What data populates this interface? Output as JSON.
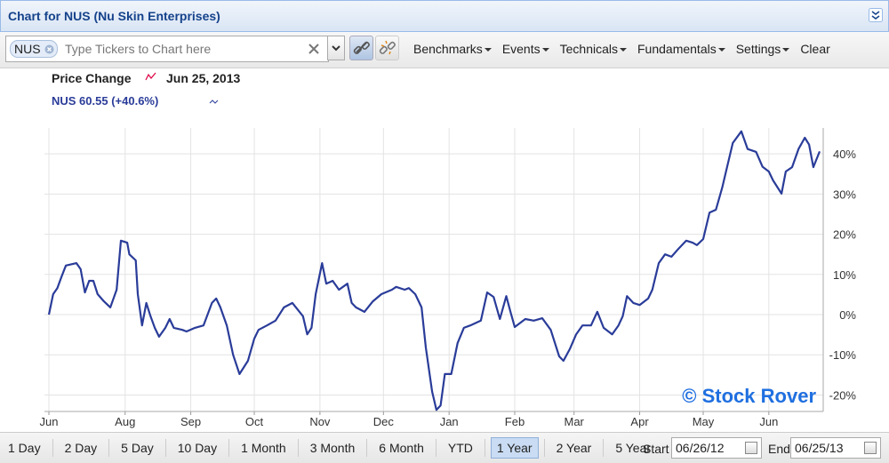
{
  "window": {
    "title": "Chart for NUS (Nu Skin Enterprises)"
  },
  "toolbar": {
    "ticker": "NUS",
    "placeholder": "Type Tickers to Chart here",
    "menus": [
      "Benchmarks",
      "Events",
      "Technicals",
      "Fundamentals",
      "Settings",
      "Clear"
    ]
  },
  "chart_data": {
    "type": "line",
    "title": "Price Change",
    "date": "Jun 25, 2013",
    "annotation": "© Stock Rover",
    "x": [
      "2012-06-26",
      "2012-06-28",
      "2012-06-30",
      "2012-07-02",
      "2012-07-04",
      "2012-07-09",
      "2012-07-11",
      "2012-07-13",
      "2012-07-15",
      "2012-07-17",
      "2012-07-19",
      "2012-07-22",
      "2012-07-25",
      "2012-07-28",
      "2012-07-30",
      "2012-08-02",
      "2012-08-03",
      "2012-08-06",
      "2012-08-07",
      "2012-08-09",
      "2012-08-11",
      "2012-08-13",
      "2012-08-15",
      "2012-08-17",
      "2012-08-20",
      "2012-08-22",
      "2012-08-24",
      "2012-08-28",
      "2012-08-30",
      "2012-09-03",
      "2012-09-07",
      "2012-09-11",
      "2012-09-13",
      "2012-09-15",
      "2012-09-18",
      "2012-09-21",
      "2012-09-24",
      "2012-09-28",
      "2012-10-01",
      "2012-10-03",
      "2012-10-07",
      "2012-10-11",
      "2012-10-15",
      "2012-10-19",
      "2012-10-24",
      "2012-10-26",
      "2012-10-28",
      "2012-10-30",
      "2012-11-02",
      "2012-11-04",
      "2012-11-07",
      "2012-11-10",
      "2012-11-14",
      "2012-11-16",
      "2012-11-18",
      "2012-11-22",
      "2012-11-26",
      "2012-11-30",
      "2012-12-05",
      "2012-12-07",
      "2012-12-11",
      "2012-12-13",
      "2012-12-16",
      "2012-12-19",
      "2012-12-21",
      "2012-12-24",
      "2012-12-26",
      "2012-12-28",
      "2012-12-30",
      "2013-01-02",
      "2013-01-05",
      "2013-01-08",
      "2013-01-11",
      "2013-01-16",
      "2013-01-19",
      "2013-01-22",
      "2013-01-25",
      "2013-01-28",
      "2013-01-30",
      "2013-02-01",
      "2013-02-06",
      "2013-02-10",
      "2013-02-14",
      "2013-02-18",
      "2013-02-22",
      "2013-02-24",
      "2013-02-27",
      "2013-03-02",
      "2013-03-05",
      "2013-03-09",
      "2013-03-12",
      "2013-03-15",
      "2013-03-19",
      "2013-03-22",
      "2013-03-24",
      "2013-03-26",
      "2013-03-29",
      "2013-04-01",
      "2013-04-05",
      "2013-04-07",
      "2013-04-10",
      "2013-04-13",
      "2013-04-16",
      "2013-04-19",
      "2013-04-23",
      "2013-04-26",
      "2013-04-28",
      "2013-05-01",
      "2013-05-04",
      "2013-05-07",
      "2013-05-10",
      "2013-05-12",
      "2013-05-15",
      "2013-05-19",
      "2013-05-22",
      "2013-05-26",
      "2013-05-29",
      "2013-06-01",
      "2013-06-03",
      "2013-06-07",
      "2013-06-09",
      "2013-06-12",
      "2013-06-15",
      "2013-06-18",
      "2013-06-20",
      "2013-06-22",
      "2013-06-25"
    ],
    "series": [
      {
        "name": "NUS 60.55 (+40.6%)",
        "color": "#2a3c99",
        "values": [
          0,
          5.1,
          6.6,
          9.5,
          12.2,
          12.8,
          11.3,
          5.5,
          8.4,
          8.4,
          5.1,
          3.3,
          1.8,
          6.2,
          18.4,
          17.9,
          15.0,
          13.5,
          5.1,
          -2.7,
          2.9,
          -0.4,
          -3.3,
          -5.5,
          -3.3,
          -1.1,
          -3.3,
          -3.8,
          -4.2,
          -3.3,
          -2.7,
          2.9,
          4.0,
          1.8,
          -2.7,
          -10.0,
          -14.8,
          -11.5,
          -6.0,
          -3.8,
          -2.7,
          -1.5,
          1.8,
          2.9,
          -0.4,
          -4.9,
          -3.3,
          5.1,
          12.8,
          7.7,
          8.4,
          6.2,
          7.7,
          2.9,
          1.8,
          0.7,
          3.3,
          5.1,
          6.2,
          6.9,
          6.2,
          6.6,
          5.1,
          1.8,
          -8.2,
          -19.2,
          -23.7,
          -22.6,
          -14.8,
          -14.8,
          -7.1,
          -3.3,
          -2.7,
          -1.5,
          5.5,
          4.4,
          -1.1,
          4.6,
          0.7,
          -3.1,
          -1.1,
          -1.5,
          -0.9,
          -3.8,
          -10.4,
          -11.5,
          -8.6,
          -4.9,
          -2.7,
          -2.7,
          0.7,
          -3.3,
          -4.9,
          -2.7,
          -0.4,
          4.6,
          2.9,
          2.4,
          4.0,
          6.2,
          12.8,
          15.0,
          14.4,
          16.2,
          18.4,
          17.9,
          17.3,
          18.8,
          25.4,
          26.1,
          31.6,
          36.1,
          42.7,
          45.6,
          41.2,
          40.5,
          36.8,
          35.6,
          33.4,
          30.1,
          35.6,
          36.7,
          41.2,
          44.0,
          42.3,
          36.7,
          40.6
        ]
      }
    ],
    "xlim": [
      "2012-06-26",
      "2013-06-25"
    ],
    "xticks": [
      {
        "value": "2012-06-26",
        "label": "Jun"
      },
      {
        "value": "2012-08-01",
        "label": "Aug"
      },
      {
        "value": "2012-09-01",
        "label": "Sep"
      },
      {
        "value": "2012-10-01",
        "label": "Oct"
      },
      {
        "value": "2012-11-01",
        "label": "Nov"
      },
      {
        "value": "2012-12-01",
        "label": "Dec"
      },
      {
        "value": "2013-01-01",
        "label": "Jan"
      },
      {
        "value": "2013-02-01",
        "label": "Feb"
      },
      {
        "value": "2013-03-01",
        "label": "Mar"
      },
      {
        "value": "2013-04-01",
        "label": "Apr"
      },
      {
        "value": "2013-05-01",
        "label": "May"
      },
      {
        "value": "2013-06-01",
        "label": "Jun"
      }
    ],
    "ylim": [
      -24.1,
      46
    ],
    "yticks": [
      {
        "value": -20,
        "label": "-20%"
      },
      {
        "value": -10,
        "label": "-10%"
      },
      {
        "value": 0,
        "label": "0%"
      },
      {
        "value": 10,
        "label": "10%"
      },
      {
        "value": 20,
        "label": "20%"
      },
      {
        "value": 30,
        "label": "30%"
      },
      {
        "value": 40,
        "label": "40%"
      }
    ],
    "grid": true
  },
  "range_bar": {
    "ranges": [
      "1 Day",
      "2 Day",
      "5 Day",
      "10 Day",
      "1 Month",
      "3 Month",
      "6 Month",
      "YTD",
      "1 Year",
      "2 Year",
      "5 Year"
    ],
    "selected": 8
  },
  "dates": {
    "start_label": "Start",
    "start": "06/26/12",
    "end_label": "End",
    "end": "06/25/13"
  }
}
